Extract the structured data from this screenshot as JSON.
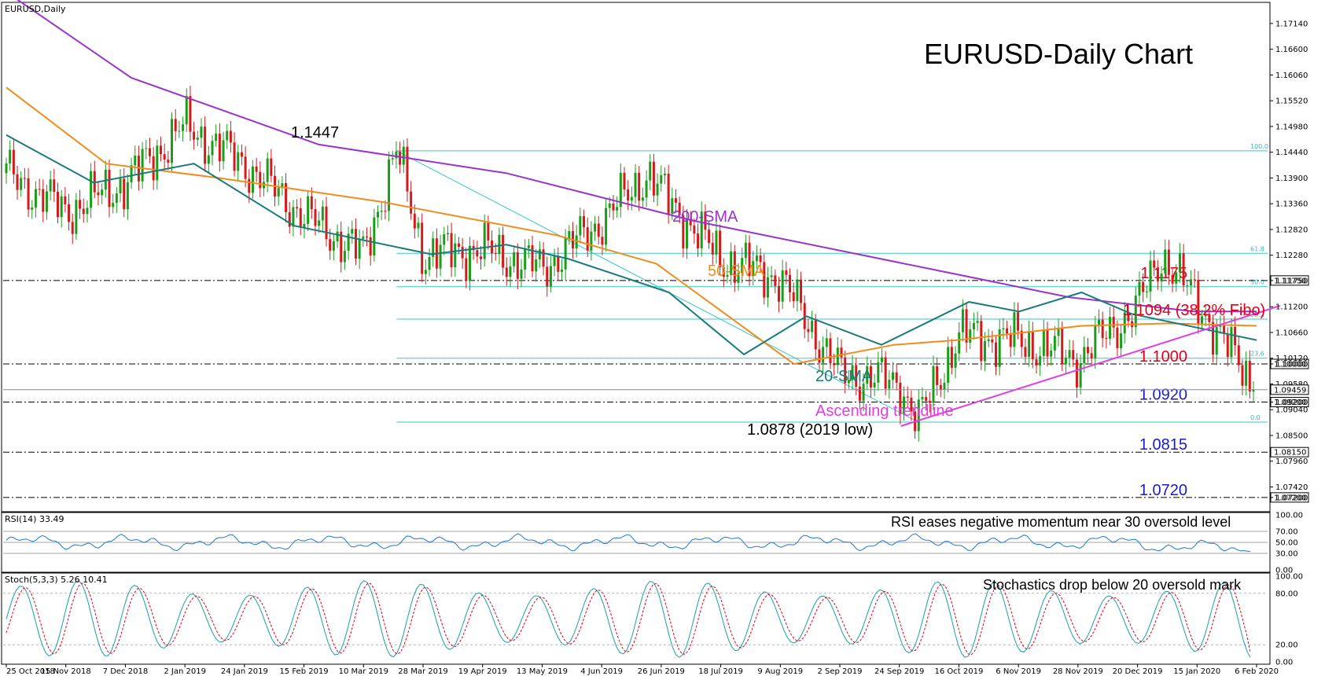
{
  "chart_data": {
    "type": "candlestick",
    "symbol_label": "EURUSD,Daily",
    "title": "EURUSD-Daily Chart",
    "x_tick_labels": [
      "25 Oct 2018",
      "15 Nov 2018",
      "7 Dec 2018",
      "2 Jan 2019",
      "24 Jan 2019",
      "15 Feb 2019",
      "10 Mar 2019",
      "28 Mar 2019",
      "19 Apr 2019",
      "13 May 2019",
      "4 Jun 2019",
      "26 Jun 2019",
      "18 Jul 2019",
      "9 Aug 2019",
      "2 Sep 2019",
      "24 Sep 2019",
      "16 Oct 2019",
      "6 Nov 2019",
      "28 Nov 2019",
      "20 Dec 2019",
      "15 Jan 2020",
      "6 Feb 2020"
    ],
    "y_tick_labels": [
      "1.17140",
      "1.16600",
      "1.16060",
      "1.15520",
      "1.14980",
      "1.14440",
      "1.13900",
      "1.13360",
      "1.12820",
      "1.12280",
      "1.11750",
      "1.11200",
      "1.10660",
      "1.10120",
      "1.10000",
      "1.09580",
      "1.09459",
      "1.09200",
      "1.09040",
      "1.08500",
      "1.07960",
      "1.07420",
      "1.07200"
    ],
    "ylim": [
      1.0695,
      1.1755
    ],
    "current_price": 1.09459,
    "keypoints": [
      {
        "date": "25 Oct 2018",
        "close": 1.14
      },
      {
        "date": "15 Nov 2018",
        "close": 1.132
      },
      {
        "date": "7 Dec 2018",
        "close": 1.138
      },
      {
        "date": "2 Jan 2019",
        "close": 1.15
      },
      {
        "date": "24 Jan 2019",
        "close": 1.142
      },
      {
        "date": "15 Feb 2019",
        "close": 1.131
      },
      {
        "date": "10 Mar 2019",
        "close": 1.123
      },
      {
        "date": "20 Mar 2019",
        "close": 1.1447
      },
      {
        "date": "28 Mar 2019",
        "close": 1.123
      },
      {
        "date": "19 Apr 2019",
        "close": 1.124
      },
      {
        "date": "13 May 2019",
        "close": 1.12
      },
      {
        "date": "4 Jun 2019",
        "close": 1.13
      },
      {
        "date": "21 Jun 2019",
        "close": 1.14
      },
      {
        "date": "26 Jun 2019",
        "close": 1.136
      },
      {
        "date": "18 Jul 2019",
        "close": 1.122
      },
      {
        "date": "9 Aug 2019",
        "close": 1.118
      },
      {
        "date": "2 Sep 2019",
        "close": 1.098
      },
      {
        "date": "24 Sep 2019",
        "close": 1.096
      },
      {
        "date": "1 Oct 2019",
        "close": 1.088
      },
      {
        "date": "16 Oct 2019",
        "close": 1.106
      },
      {
        "date": "6 Nov 2019",
        "close": 1.105
      },
      {
        "date": "28 Nov 2019",
        "close": 1.101
      },
      {
        "date": "20 Dec 2019",
        "close": 1.112
      },
      {
        "date": "31 Dec 2019",
        "close": 1.123
      },
      {
        "date": "15 Jan 2020",
        "close": 1.113
      },
      {
        "date": "6 Feb 2020",
        "close": 1.0946
      }
    ],
    "series": [
      {
        "name": "200-SMA",
        "color": "#9933cc",
        "keypoints": [
          [
            0,
            1.178
          ],
          [
            0.1,
            1.16
          ],
          [
            0.25,
            1.146
          ],
          [
            0.4,
            1.14
          ],
          [
            0.55,
            1.13
          ],
          [
            0.7,
            1.122
          ],
          [
            0.85,
            1.114
          ],
          [
            0.95,
            1.111
          ],
          [
            1.0,
            1.111
          ]
        ]
      },
      {
        "name": "50-SMA",
        "color": "#f08c1e",
        "keypoints": [
          [
            0,
            1.158
          ],
          [
            0.08,
            1.142
          ],
          [
            0.17,
            1.139
          ],
          [
            0.3,
            1.134
          ],
          [
            0.44,
            1.127
          ],
          [
            0.52,
            1.121
          ],
          [
            0.63,
            1.1
          ],
          [
            0.71,
            1.104
          ],
          [
            0.76,
            1.105
          ],
          [
            0.86,
            1.108
          ],
          [
            0.93,
            1.1085
          ],
          [
            1.0,
            1.108
          ]
        ]
      },
      {
        "name": "20-SMA",
        "color": "#1a7a7a",
        "keypoints": [
          [
            0,
            1.148
          ],
          [
            0.07,
            1.138
          ],
          [
            0.15,
            1.142
          ],
          [
            0.23,
            1.129
          ],
          [
            0.34,
            1.123
          ],
          [
            0.4,
            1.125
          ],
          [
            0.45,
            1.122
          ],
          [
            0.53,
            1.115
          ],
          [
            0.59,
            1.102
          ],
          [
            0.64,
            1.11
          ],
          [
            0.7,
            1.104
          ],
          [
            0.77,
            1.113
          ],
          [
            0.81,
            1.111
          ],
          [
            0.86,
            1.115
          ],
          [
            0.9,
            1.1105
          ],
          [
            1.0,
            1.105
          ]
        ]
      }
    ],
    "fibonacci": {
      "levels": [
        {
          "label": "100.0",
          "price": 1.1447
        },
        {
          "label": "61.8",
          "price": 1.1232
        },
        {
          "label": "50.0",
          "price": 1.1162
        },
        {
          "label": "38.2",
          "price": 1.1094
        },
        {
          "label": "23.6",
          "price": 1.1012
        },
        {
          "label": "0.0",
          "price": 1.0878
        }
      ]
    },
    "horizontal_levels": [
      {
        "price": 1.1175,
        "label": "1.1175",
        "tag": "1.11750",
        "color": "#e0001a"
      },
      {
        "price": 1.1,
        "label": "1.1000",
        "tag": "1.10000",
        "color": "#e0001a"
      },
      {
        "price": 1.092,
        "label": "1.0920",
        "tag": "1.09200",
        "color": "#1a1acc"
      },
      {
        "price": 1.0815,
        "label": "1.0815",
        "tag": "1.08150",
        "color": "#1a1acc"
      },
      {
        "price": 1.072,
        "label": "1.0720",
        "tag": "1.07200",
        "color": "#1a1acc"
      }
    ],
    "fibo_annotation": "1.1094 (38.2% Fibo)",
    "annotations": {
      "high_label": "1.1447",
      "low_label": "1.0878 (2019 low)",
      "sma200_label": "200-SMA",
      "sma50_label": "50-SMA",
      "sma20_label": "20-SMA",
      "trendline_label": "Ascending trendline"
    },
    "trendline": {
      "color": "#e040e0",
      "points": [
        [
          "1 Oct 2019",
          1.0878
        ],
        [
          "6 Feb 2020",
          1.1122
        ]
      ]
    },
    "rsi": {
      "label": "RSI(14) 33.49",
      "current": 33.49,
      "levels": [
        70,
        50,
        30
      ],
      "y_ticks": [
        "100.00",
        "70.00",
        "50.00",
        "30.00",
        "0.00"
      ],
      "annotation": "RSI eases negative momentum near 30 oversold level",
      "color": "#1e78d2"
    },
    "stoch": {
      "label": "Stoch(5,3,3) 5.26 10.41",
      "main": 5.26,
      "signal": 10.41,
      "levels": [
        80,
        20
      ],
      "y_ticks": [
        "100.00",
        "80.00",
        "20.00",
        "0.00"
      ],
      "annotation": "Stochastics drop below 20 oversold mark",
      "main_color": "#1aa0a0",
      "signal_color": "#e0001a"
    }
  }
}
